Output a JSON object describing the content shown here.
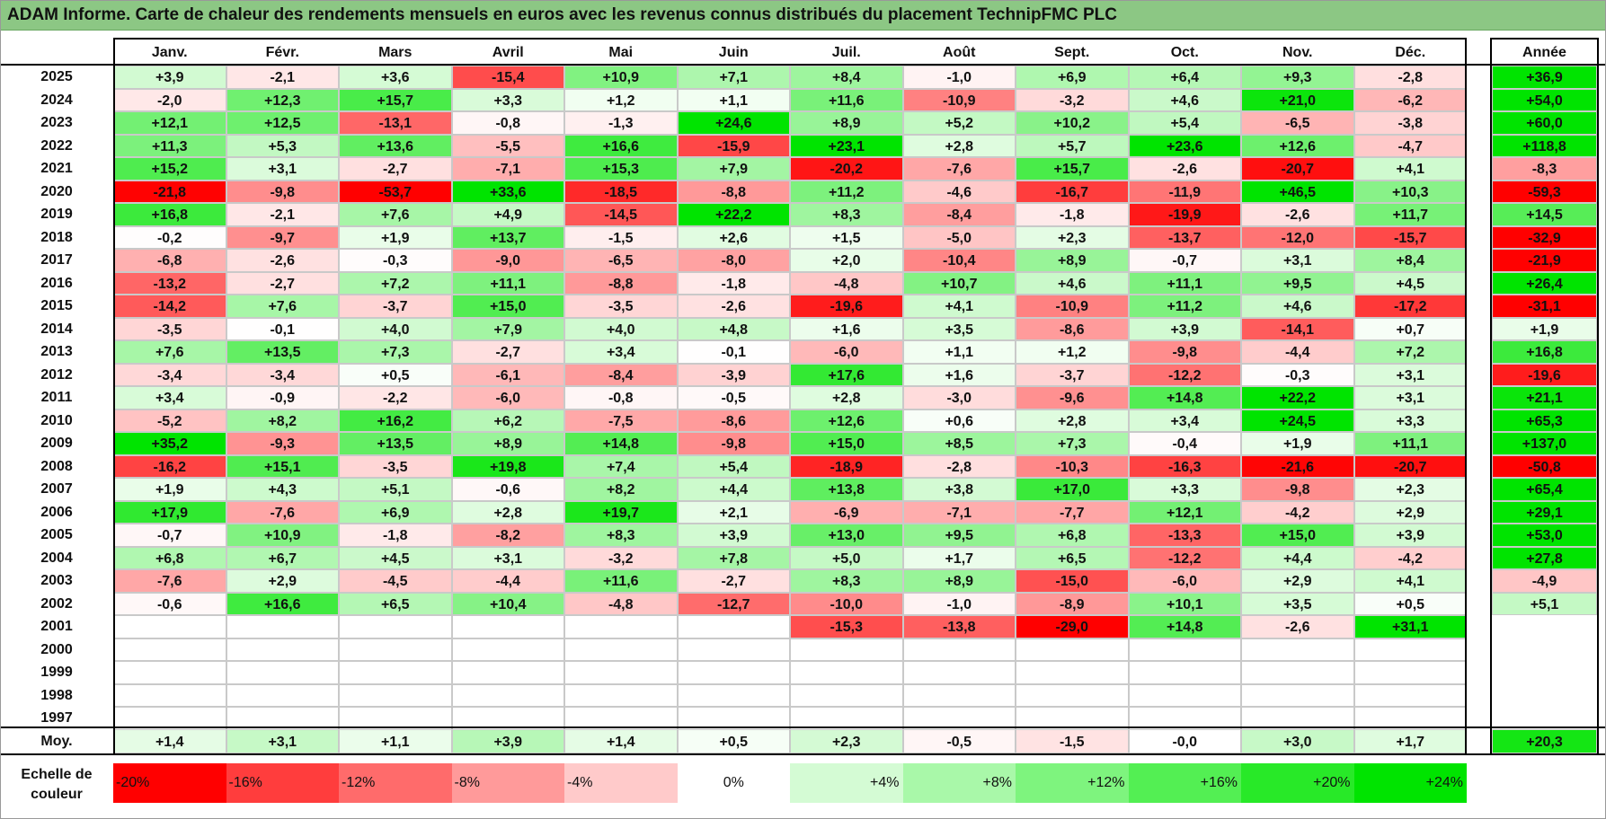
{
  "title": "ADAM Informe. Carte de chaleur des rendements mensuels en euros avec les revenus connus distribués du placement TechnipFMC PLC",
  "chart_data": {
    "type": "heatmap",
    "title": "ADAM Informe. Carte de chaleur des rendements mensuels en euros avec les revenus connus distribués du placement TechnipFMC PLC",
    "columns": [
      "Janv.",
      "Févr.",
      "Mars",
      "Avril",
      "Mai",
      "Juin",
      "Juil.",
      "Août",
      "Sept.",
      "Oct.",
      "Nov.",
      "Déc."
    ],
    "annual_header": "Année",
    "avg_label": "Moy.",
    "rows": [
      {
        "year": "2025",
        "values": [
          "+3,9",
          "-2,1",
          "+3,6",
          "-15,4",
          "+10,9",
          "+7,1",
          "+8,4",
          "-1,0",
          "+6,9",
          "+6,4",
          "+9,3",
          "-2,8"
        ],
        "annual": "+36,9"
      },
      {
        "year": "2024",
        "values": [
          "-2,0",
          "+12,3",
          "+15,7",
          "+3,3",
          "+1,2",
          "+1,1",
          "+11,6",
          "-10,9",
          "-3,2",
          "+4,6",
          "+21,0",
          "-6,2"
        ],
        "annual": "+54,0"
      },
      {
        "year": "2023",
        "values": [
          "+12,1",
          "+12,5",
          "-13,1",
          "-0,8",
          "-1,3",
          "+24,6",
          "+8,9",
          "+5,2",
          "+10,2",
          "+5,4",
          "-6,5",
          "-3,8"
        ],
        "annual": "+60,0"
      },
      {
        "year": "2022",
        "values": [
          "+11,3",
          "+5,3",
          "+13,6",
          "-5,5",
          "+16,6",
          "-15,9",
          "+23,1",
          "+2,8",
          "+5,7",
          "+23,6",
          "+12,6",
          "-4,7"
        ],
        "annual": "+118,8"
      },
      {
        "year": "2021",
        "values": [
          "+15,2",
          "+3,1",
          "-2,7",
          "-7,1",
          "+15,3",
          "+7,9",
          "-20,2",
          "-7,6",
          "+15,7",
          "-2,6",
          "-20,7",
          "+4,1"
        ],
        "annual": "-8,3"
      },
      {
        "year": "2020",
        "values": [
          "-21,8",
          "-9,8",
          "-53,7",
          "+33,6",
          "-18,5",
          "-8,8",
          "+11,2",
          "-4,6",
          "-16,7",
          "-11,9",
          "+46,5",
          "+10,3"
        ],
        "annual": "-59,3"
      },
      {
        "year": "2019",
        "values": [
          "+16,8",
          "-2,1",
          "+7,6",
          "+4,9",
          "-14,5",
          "+22,2",
          "+8,3",
          "-8,4",
          "-1,8",
          "-19,9",
          "-2,6",
          "+11,7"
        ],
        "annual": "+14,5"
      },
      {
        "year": "2018",
        "values": [
          "-0,2",
          "-9,7",
          "+1,9",
          "+13,7",
          "-1,5",
          "+2,6",
          "+1,5",
          "-5,0",
          "+2,3",
          "-13,7",
          "-12,0",
          "-15,7"
        ],
        "annual": "-32,9"
      },
      {
        "year": "2017",
        "values": [
          "-6,8",
          "-2,6",
          "-0,3",
          "-9,0",
          "-6,5",
          "-8,0",
          "+2,0",
          "-10,4",
          "+8,9",
          "-0,7",
          "+3,1",
          "+8,4"
        ],
        "annual": "-21,9"
      },
      {
        "year": "2016",
        "values": [
          "-13,2",
          "-2,7",
          "+7,2",
          "+11,1",
          "-8,8",
          "-1,8",
          "-4,8",
          "+10,7",
          "+4,6",
          "+11,1",
          "+9,5",
          "+4,5"
        ],
        "annual": "+26,4"
      },
      {
        "year": "2015",
        "values": [
          "-14,2",
          "+7,6",
          "-3,7",
          "+15,0",
          "-3,5",
          "-2,6",
          "-19,6",
          "+4,1",
          "-10,9",
          "+11,2",
          "+4,6",
          "-17,2"
        ],
        "annual": "-31,1"
      },
      {
        "year": "2014",
        "values": [
          "-3,5",
          "-0,1",
          "+4,0",
          "+7,9",
          "+4,0",
          "+4,8",
          "+1,6",
          "+3,5",
          "-8,6",
          "+3,9",
          "-14,1",
          "+0,7"
        ],
        "annual": "+1,9"
      },
      {
        "year": "2013",
        "values": [
          "+7,6",
          "+13,5",
          "+7,3",
          "-2,7",
          "+3,4",
          "-0,1",
          "-6,0",
          "+1,1",
          "+1,2",
          "-9,8",
          "-4,4",
          "+7,2"
        ],
        "annual": "+16,8"
      },
      {
        "year": "2012",
        "values": [
          "-3,4",
          "-3,4",
          "+0,5",
          "-6,1",
          "-8,4",
          "-3,9",
          "+17,6",
          "+1,6",
          "-3,7",
          "-12,2",
          "-0,3",
          "+3,1"
        ],
        "annual": "-19,6"
      },
      {
        "year": "2011",
        "values": [
          "+3,4",
          "-0,9",
          "-2,2",
          "-6,0",
          "-0,8",
          "-0,5",
          "+2,8",
          "-3,0",
          "-9,6",
          "+14,8",
          "+22,2",
          "+3,1"
        ],
        "annual": "+21,1"
      },
      {
        "year": "2010",
        "values": [
          "-5,2",
          "+8,2",
          "+16,2",
          "+6,2",
          "-7,5",
          "-8,6",
          "+12,6",
          "+0,6",
          "+2,8",
          "+3,4",
          "+24,5",
          "+3,3"
        ],
        "annual": "+65,3"
      },
      {
        "year": "2009",
        "values": [
          "+35,2",
          "-9,3",
          "+13,5",
          "+8,9",
          "+14,8",
          "-9,8",
          "+15,0",
          "+8,5",
          "+7,3",
          "-0,4",
          "+1,9",
          "+11,1"
        ],
        "annual": "+137,0"
      },
      {
        "year": "2008",
        "values": [
          "-16,2",
          "+15,1",
          "-3,5",
          "+19,8",
          "+7,4",
          "+5,4",
          "-18,9",
          "-2,8",
          "-10,3",
          "-16,3",
          "-21,6",
          "-20,7"
        ],
        "annual": "-50,8"
      },
      {
        "year": "2007",
        "values": [
          "+1,9",
          "+4,3",
          "+5,1",
          "-0,6",
          "+8,2",
          "+4,4",
          "+13,8",
          "+3,8",
          "+17,0",
          "+3,3",
          "-9,8",
          "+2,3"
        ],
        "annual": "+65,4"
      },
      {
        "year": "2006",
        "values": [
          "+17,9",
          "-7,6",
          "+6,9",
          "+2,8",
          "+19,7",
          "+2,1",
          "-6,9",
          "-7,1",
          "-7,7",
          "+12,1",
          "-4,2",
          "+2,9"
        ],
        "annual": "+29,1"
      },
      {
        "year": "2005",
        "values": [
          "-0,7",
          "+10,9",
          "-1,8",
          "-8,2",
          "+8,3",
          "+3,9",
          "+13,0",
          "+9,5",
          "+6,8",
          "-13,3",
          "+15,0",
          "+3,9"
        ],
        "annual": "+53,0"
      },
      {
        "year": "2004",
        "values": [
          "+6,8",
          "+6,7",
          "+4,5",
          "+3,1",
          "-3,2",
          "+7,8",
          "+5,0",
          "+1,7",
          "+6,5",
          "-12,2",
          "+4,4",
          "-4,2"
        ],
        "annual": "+27,8"
      },
      {
        "year": "2003",
        "values": [
          "-7,6",
          "+2,9",
          "-4,5",
          "-4,4",
          "+11,6",
          "-2,7",
          "+8,3",
          "+8,9",
          "-15,0",
          "-6,0",
          "+2,9",
          "+4,1"
        ],
        "annual": "-4,9"
      },
      {
        "year": "2002",
        "values": [
          "-0,6",
          "+16,6",
          "+6,5",
          "+10,4",
          "-4,8",
          "-12,7",
          "-10,0",
          "-1,0",
          "-8,9",
          "+10,1",
          "+3,5",
          "+0,5"
        ],
        "annual": "+5,1"
      },
      {
        "year": "2001",
        "values": [
          "",
          "",
          "",
          "",
          "",
          "",
          "-15,3",
          "-13,8",
          "-29,0",
          "+14,8",
          "-2,6",
          "+31,1"
        ],
        "annual": ""
      },
      {
        "year": "2000",
        "values": [
          "",
          "",
          "",
          "",
          "",
          "",
          "",
          "",
          "",
          "",
          "",
          ""
        ],
        "annual": ""
      },
      {
        "year": "1999",
        "values": [
          "",
          "",
          "",
          "",
          "",
          "",
          "",
          "",
          "",
          "",
          "",
          ""
        ],
        "annual": ""
      },
      {
        "year": "1998",
        "values": [
          "",
          "",
          "",
          "",
          "",
          "",
          "",
          "",
          "",
          "",
          "",
          ""
        ],
        "annual": ""
      },
      {
        "year": "1997",
        "values": [
          "",
          "",
          "",
          "",
          "",
          "",
          "",
          "",
          "",
          "",
          "",
          ""
        ],
        "annual": ""
      }
    ],
    "average": {
      "values": [
        "+1,4",
        "+3,1",
        "+1,1",
        "+3,9",
        "+1,4",
        "+0,5",
        "+2,3",
        "-0,5",
        "-1,5",
        "-0,0",
        "+3,0",
        "+1,7"
      ],
      "annual": "+20,3"
    },
    "scale_label": [
      "Echelle de",
      "couleur"
    ],
    "scale": [
      {
        "label": "-20%",
        "value": -20,
        "color": "#ff0000",
        "align": "left"
      },
      {
        "label": "-16%",
        "value": -16,
        "color": "#ff3d3d",
        "align": "left"
      },
      {
        "label": "-12%",
        "value": -12,
        "color": "#ff6b6b",
        "align": "left"
      },
      {
        "label": "-8%",
        "value": -8,
        "color": "#ff9a9a",
        "align": "left"
      },
      {
        "label": "-4%",
        "value": -4,
        "color": "#ffcaca",
        "align": "left"
      },
      {
        "label": "0%",
        "value": 0,
        "color": "#ffffff",
        "align": "center"
      },
      {
        "label": "+4%",
        "value": 4,
        "color": "#d4fbd4",
        "align": "right"
      },
      {
        "label": "+8%",
        "value": 8,
        "color": "#a9f8a9",
        "align": "right"
      },
      {
        "label": "+12%",
        "value": 12,
        "color": "#7ef47e",
        "align": "right"
      },
      {
        "label": "+16%",
        "value": 16,
        "color": "#53ef53",
        "align": "right"
      },
      {
        "label": "+20%",
        "value": 20,
        "color": "#28e928",
        "align": "right"
      },
      {
        "label": "+24%",
        "value": 24,
        "color": "#00e400",
        "align": "right"
      }
    ]
  }
}
